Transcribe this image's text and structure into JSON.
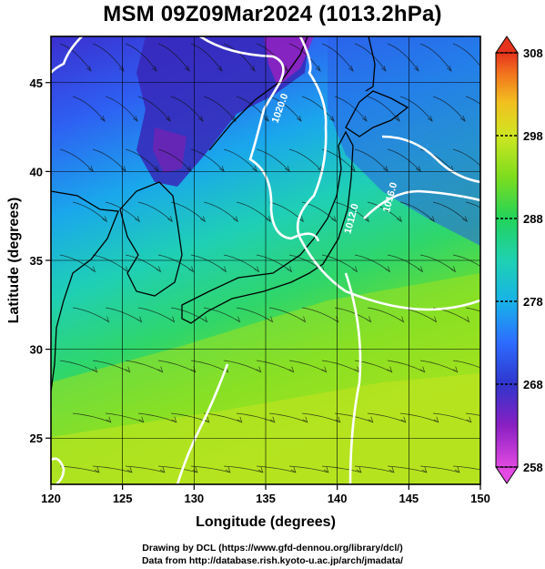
{
  "title": "MSM 09Z09Mar2024 (1013.2hPa)",
  "footer": {
    "line1": "Drawing by DCL (https://www.gfd-dennou.org/library/dcl/)",
    "line2": "Data from http://database.rish.kyoto-u.ac.jp/arch/jmadata/"
  },
  "map": {
    "xlabel": "Longitude (degrees)",
    "ylabel": "Latitude  (degrees)",
    "xlim": [
      120,
      150
    ],
    "ylim": [
      22.4,
      47.6
    ],
    "x_ticks": [
      120,
      125,
      130,
      135,
      140,
      145,
      150
    ],
    "y_ticks": [
      25,
      30,
      35,
      40,
      45
    ],
    "grid": true,
    "field": "temperature (K), shaded; pressure contours, white; streamlines, black",
    "contour_labels": [
      {
        "text": "1020.0",
        "lon": 136.2,
        "lat": 43.5,
        "angle": -70
      },
      {
        "text": "1012.0",
        "lon": 141.2,
        "lat": 37.3,
        "angle": -75
      },
      {
        "text": "1016.0",
        "lon": 143.9,
        "lat": 38.5,
        "angle": -75
      }
    ]
  },
  "colorbar": {
    "min": 258,
    "max": 308,
    "ticks": [
      258,
      268,
      278,
      288,
      298,
      308
    ],
    "colors": [
      "#e040e0",
      "#8a1fc2",
      "#3a30c8",
      "#2d66ff",
      "#19b5e6",
      "#1fd0b8",
      "#1ed36a",
      "#66dd1e",
      "#b2e51e",
      "#ece52a",
      "#f5b01e",
      "#f36a1e",
      "#e8301e"
    ]
  }
}
